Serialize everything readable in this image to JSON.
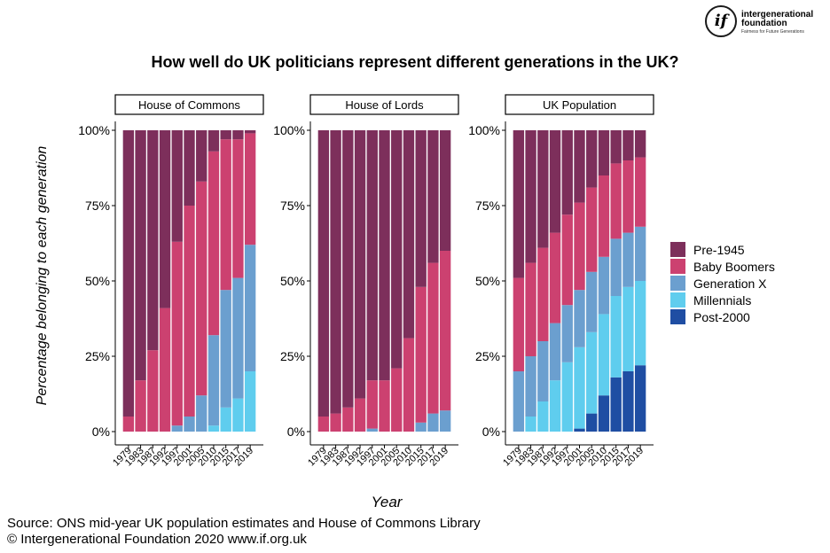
{
  "title": "How well do UK politicians represent different generations in the UK?",
  "xlabel": "Year",
  "ylabel": "Percentage belonging to each generation",
  "source_line1": "Source: ONS mid-year UK population estimates and House of Commons Library",
  "source_line2": "© Intergenerational Foundation 2020 www.if.org.uk",
  "logo": {
    "mark": "if",
    "name_line1": "intergenerational",
    "name_line2": "foundation",
    "tagline": "Fairness for Future Generations"
  },
  "colors": {
    "Pre-1945": "#7d2f5b",
    "Baby Boomers": "#cc4170",
    "Generation X": "#6b9fcf",
    "Millennials": "#5fcdee",
    "Post-2000": "#1f4ea3"
  },
  "chart_data": {
    "type": "bar",
    "stacked": true,
    "ylim": [
      0,
      100
    ],
    "y_ticks": [
      "0%",
      "25%",
      "50%",
      "75%",
      "100%"
    ],
    "categories": [
      "1979",
      "1983",
      "1987",
      "1992",
      "1997",
      "2001",
      "2005",
      "2010",
      "2015",
      "2017",
      "2019"
    ],
    "legend_order": [
      "Pre-1945",
      "Baby Boomers",
      "Generation X",
      "Millennials",
      "Post-2000"
    ],
    "legend_position": "right",
    "panels": [
      {
        "name": "House of Commons",
        "series": [
          {
            "name": "Post-2000",
            "values": [
              0,
              0,
              0,
              0,
              0,
              0,
              0,
              0,
              0,
              0,
              0
            ]
          },
          {
            "name": "Millennials",
            "values": [
              0,
              0,
              0,
              0,
              0,
              0,
              0,
              2,
              8,
              11,
              20
            ]
          },
          {
            "name": "Generation X",
            "values": [
              0,
              0,
              0,
              0,
              2,
              5,
              12,
              30,
              39,
              40,
              42
            ]
          },
          {
            "name": "Baby Boomers",
            "values": [
              5,
              17,
              27,
              41,
              61,
              70,
              71,
              61,
              50,
              46,
              37
            ]
          },
          {
            "name": "Pre-1945",
            "values": [
              95,
              83,
              73,
              59,
              37,
              25,
              17,
              7,
              3,
              3,
              1
            ]
          }
        ]
      },
      {
        "name": "House of Lords",
        "series": [
          {
            "name": "Post-2000",
            "values": [
              0,
              0,
              0,
              0,
              0,
              0,
              0,
              0,
              0,
              0,
              0
            ]
          },
          {
            "name": "Millennials",
            "values": [
              0,
              0,
              0,
              0,
              0,
              0,
              0,
              0,
              0,
              0,
              0
            ]
          },
          {
            "name": "Generation X",
            "values": [
              0,
              0,
              0,
              0,
              1,
              0,
              0,
              0,
              3,
              6,
              7
            ]
          },
          {
            "name": "Baby Boomers",
            "values": [
              5,
              6,
              8,
              11,
              16,
              17,
              21,
              31,
              45,
              50,
              53
            ]
          },
          {
            "name": "Pre-1945",
            "values": [
              95,
              94,
              92,
              89,
              83,
              83,
              79,
              69,
              52,
              44,
              40
            ]
          }
        ]
      },
      {
        "name": "UK Population",
        "series": [
          {
            "name": "Post-2000",
            "values": [
              0,
              0,
              0,
              0,
              0,
              1,
              6,
              12,
              18,
              20,
              22
            ]
          },
          {
            "name": "Millennials",
            "values": [
              0,
              5,
              10,
              17,
              23,
              27,
              27,
              27,
              27,
              28,
              28
            ]
          },
          {
            "name": "Generation X",
            "values": [
              20,
              20,
              20,
              19,
              19,
              19,
              20,
              19,
              19,
              18,
              18
            ]
          },
          {
            "name": "Baby Boomers",
            "values": [
              31,
              31,
              31,
              30,
              30,
              29,
              28,
              27,
              25,
              24,
              23
            ]
          },
          {
            "name": "Pre-1945",
            "values": [
              49,
              44,
              39,
              34,
              28,
              24,
              19,
              15,
              11,
              10,
              9
            ]
          }
        ]
      }
    ]
  }
}
